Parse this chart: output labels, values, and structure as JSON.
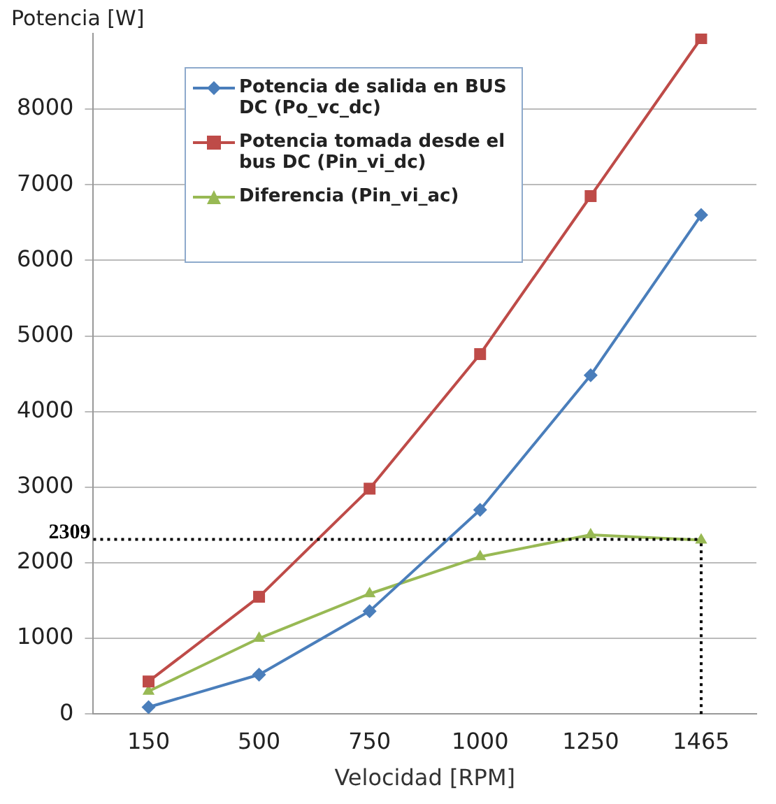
{
  "chart_data": {
    "type": "line",
    "xlabel": "Velocidad [RPM]",
    "ylabel": "Potencia [W]",
    "categories": [
      "150",
      "500",
      "750",
      "1000",
      "1250",
      "1465"
    ],
    "series": [
      {
        "name": "Potencia de salida en BUS DC (Po_vc_dc)",
        "color": "#4a7ebb",
        "marker": "diamond",
        "values": [
          90,
          520,
          1360,
          2700,
          4480,
          6600
        ]
      },
      {
        "name": "Potencia tomada desde el bus DC (Pin_vi_dc)",
        "color": "#be4b48",
        "marker": "square",
        "values": [
          430,
          1550,
          2980,
          4760,
          6850,
          8940
        ]
      },
      {
        "name": "Diferencia (Pin_vi_ac)",
        "color": "#98b954",
        "marker": "triangle",
        "values": [
          300,
          1000,
          1590,
          2080,
          2370,
          2300
        ]
      }
    ],
    "ylim": [
      0,
      9000
    ],
    "yticks": [
      0,
      1000,
      2000,
      3000,
      4000,
      5000,
      6000,
      7000,
      8000
    ],
    "grid": "y",
    "legend": "top left",
    "line_style": "solid",
    "ref_lines": [
      {
        "axis": "y",
        "value": 2309,
        "label": "2309",
        "color": "#000000",
        "line_style": "dotted"
      },
      {
        "axis": "x",
        "value": "1465",
        "color": "#000000",
        "line_style": "dotted"
      }
    ]
  }
}
